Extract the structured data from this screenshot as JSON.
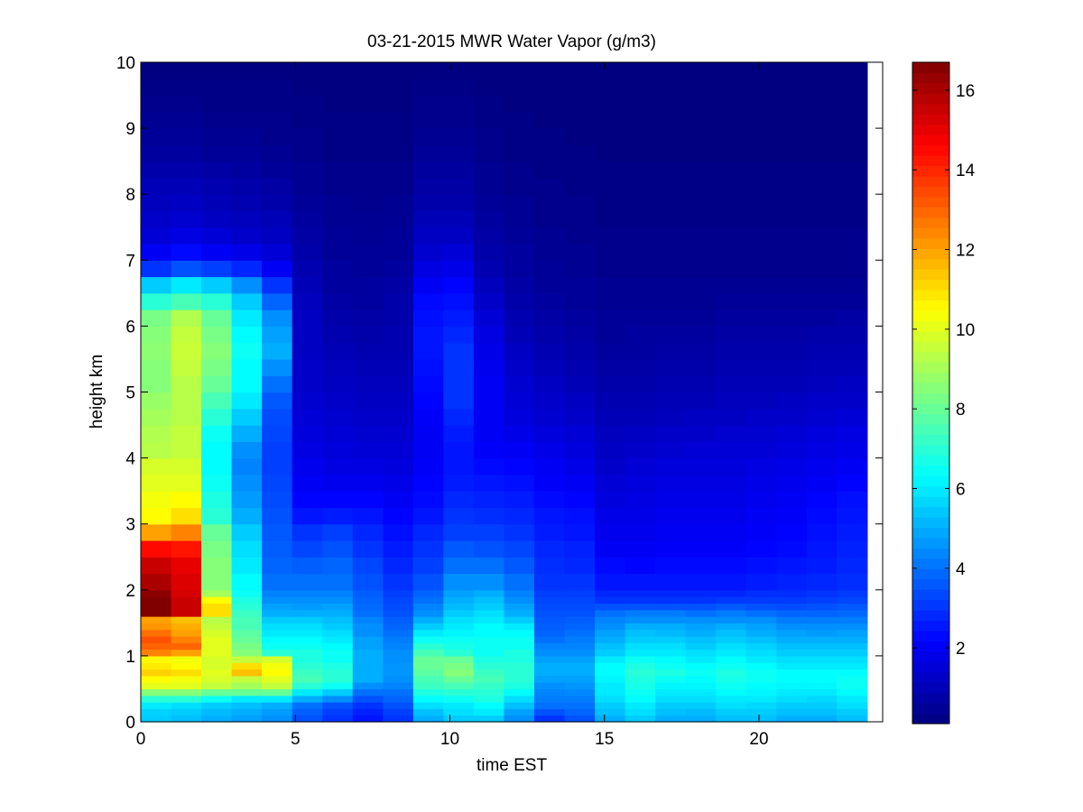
{
  "chart_data": {
    "type": "heatmap",
    "title": "03-21-2015 MWR Water Vapor (g/m3)",
    "xlabel": "time EST",
    "ylabel": "height km",
    "xlim": [
      0,
      24
    ],
    "ylim": [
      0,
      10
    ],
    "x_ticks": [
      0,
      5,
      10,
      15,
      20
    ],
    "y_ticks": [
      0,
      1,
      2,
      3,
      4,
      5,
      6,
      7,
      8,
      9,
      10
    ],
    "colorbar": {
      "colormap": "jet",
      "range": [
        0.1,
        16.7
      ],
      "ticks": [
        2,
        4,
        6,
        8,
        10,
        12,
        14,
        16
      ]
    },
    "time_bins": {
      "start": 0,
      "end": 23.5,
      "count": 24
    },
    "height_levels_km": [
      0,
      0.1,
      0.2,
      0.3,
      0.4,
      0.5,
      0.6,
      0.7,
      0.8,
      0.9,
      1.0,
      1.1,
      1.2,
      1.3,
      1.4,
      1.5,
      1.6,
      1.7,
      1.8,
      1.9,
      2.0,
      2.25,
      2.5,
      2.75,
      3.0,
      3.25,
      3.5,
      3.75,
      4.0,
      4.25,
      4.5,
      4.75,
      5.0,
      5.25,
      5.5,
      5.75,
      6.0,
      6.25,
      6.5,
      6.75,
      7.0,
      7.25,
      7.5,
      7.75,
      8.0,
      8.25,
      8.5,
      8.75,
      9.0,
      9.25,
      9.5,
      9.75
    ],
    "values_by_time": [
      [
        5.5,
        5.6,
        6.0,
        7.0,
        8.5,
        10.0,
        10.5,
        11.2,
        10.8,
        10.5,
        12.5,
        13.0,
        13.3,
        12.8,
        12.2,
        12.0,
        16.7,
        16.7,
        16.7,
        16.5,
        16.0,
        15.5,
        14.5,
        12.0,
        10.5,
        10.3,
        10.0,
        9.8,
        9.3,
        9.2,
        9.0,
        8.8,
        8.5,
        8.5,
        8.6,
        8.5,
        8.3,
        7.0,
        5.5,
        3.0,
        2.0,
        1.5,
        1.3,
        1.1,
        1.0,
        0.8,
        0.6,
        0.5,
        0.4,
        0.3,
        0.2,
        0.1
      ],
      [
        5.3,
        5.5,
        5.8,
        7.0,
        8.5,
        10.0,
        10.3,
        11.0,
        10.5,
        10.3,
        12.0,
        13.0,
        12.5,
        12.0,
        11.8,
        11.5,
        15.5,
        15.5,
        15.5,
        15.3,
        15.2,
        15.0,
        14.3,
        12.5,
        11.0,
        10.5,
        10.0,
        9.8,
        9.5,
        9.5,
        9.3,
        9.3,
        9.3,
        9.5,
        9.6,
        9.5,
        9.2,
        7.5,
        6.0,
        3.5,
        2.3,
        1.7,
        1.4,
        1.2,
        1.0,
        0.8,
        0.6,
        0.5,
        0.4,
        0.3,
        0.2,
        0.1
      ],
      [
        5.0,
        5.2,
        5.5,
        6.5,
        8.0,
        9.5,
        9.8,
        10.0,
        9.8,
        9.8,
        10.0,
        10.0,
        10.0,
        9.8,
        9.5,
        9.3,
        11.0,
        11.0,
        10.5,
        9.0,
        8.5,
        8.5,
        8.3,
        8.0,
        7.0,
        6.8,
        6.5,
        6.3,
        6.3,
        6.5,
        7.0,
        7.5,
        8.0,
        8.3,
        8.5,
        8.3,
        8.0,
        7.0,
        5.5,
        3.2,
        2.0,
        1.5,
        1.2,
        1.0,
        0.9,
        0.7,
        0.5,
        0.4,
        0.3,
        0.2,
        0.2,
        0.1
      ],
      [
        4.8,
        5.0,
        5.3,
        6.0,
        8.0,
        9.0,
        9.5,
        11.5,
        11.0,
        9.5,
        8.5,
        8.3,
        8.0,
        7.8,
        7.5,
        7.5,
        7.3,
        7.0,
        6.8,
        6.5,
        6.3,
        6.0,
        5.8,
        5.5,
        5.0,
        4.7,
        4.5,
        4.3,
        4.5,
        5.0,
        5.5,
        6.0,
        6.3,
        6.3,
        6.5,
        6.3,
        6.0,
        5.5,
        4.5,
        2.8,
        1.8,
        1.3,
        1.1,
        0.9,
        0.8,
        0.6,
        0.5,
        0.4,
        0.3,
        0.2,
        0.2,
        0.1
      ],
      [
        4.5,
        4.7,
        5.0,
        6.0,
        8.0,
        9.5,
        10.0,
        10.5,
        10.3,
        9.8,
        7.0,
        6.5,
        6.3,
        6.0,
        5.8,
        5.5,
        5.0,
        4.8,
        4.5,
        4.3,
        4.0,
        3.8,
        3.7,
        3.6,
        3.5,
        3.4,
        3.3,
        3.2,
        3.2,
        3.3,
        3.4,
        3.6,
        4.0,
        4.5,
        5.0,
        4.8,
        4.5,
        3.8,
        3.0,
        2.0,
        1.5,
        1.2,
        1.0,
        0.8,
        0.7,
        0.5,
        0.4,
        0.3,
        0.3,
        0.2,
        0.2,
        0.1
      ],
      [
        3.5,
        3.7,
        4.0,
        5.0,
        6.0,
        7.0,
        7.5,
        7.3,
        7.0,
        6.8,
        6.8,
        6.5,
        6.3,
        6.0,
        5.8,
        5.5,
        5.0,
        4.7,
        4.5,
        4.3,
        4.0,
        3.7,
        3.3,
        3.0,
        2.5,
        2.2,
        2.0,
        1.9,
        1.7,
        1.6,
        1.5,
        1.4,
        1.3,
        1.3,
        1.2,
        1.2,
        1.2,
        1.1,
        1.0,
        0.9,
        0.8,
        0.7,
        0.6,
        0.5,
        0.4,
        0.4,
        0.3,
        0.3,
        0.2,
        0.2,
        0.1,
        0.1
      ],
      [
        3.0,
        3.2,
        3.5,
        4.5,
        5.5,
        6.5,
        7.0,
        7.0,
        6.8,
        6.5,
        6.5,
        6.3,
        6.0,
        5.8,
        5.5,
        5.3,
        5.0,
        4.8,
        4.5,
        4.3,
        4.0,
        3.8,
        3.5,
        3.2,
        2.6,
        2.2,
        1.9,
        1.7,
        1.6,
        1.5,
        1.4,
        1.3,
        1.2,
        1.1,
        1.0,
        0.9,
        0.8,
        0.7,
        0.6,
        0.6,
        0.5,
        0.5,
        0.4,
        0.4,
        0.3,
        0.3,
        0.2,
        0.2,
        0.2,
        0.1,
        0.1,
        0.1
      ],
      [
        2.5,
        2.7,
        3.0,
        3.5,
        4.0,
        4.5,
        5.0,
        5.0,
        5.0,
        5.0,
        5.0,
        4.8,
        4.8,
        4.5,
        4.5,
        4.3,
        4.0,
        3.9,
        3.8,
        3.7,
        3.5,
        3.3,
        3.0,
        2.8,
        2.5,
        2.2,
        1.9,
        1.7,
        1.5,
        1.4,
        1.3,
        1.2,
        1.1,
        1.0,
        0.9,
        0.8,
        0.7,
        0.6,
        0.6,
        0.5,
        0.5,
        0.4,
        0.4,
        0.3,
        0.3,
        0.3,
        0.2,
        0.2,
        0.2,
        0.1,
        0.1,
        0.1
      ],
      [
        3.0,
        3.2,
        3.5,
        3.8,
        4.0,
        4.3,
        4.5,
        4.6,
        4.6,
        4.5,
        4.5,
        4.3,
        4.2,
        4.0,
        3.8,
        3.7,
        3.5,
        3.4,
        3.3,
        3.2,
        3.0,
        2.8,
        2.6,
        2.4,
        2.2,
        2.0,
        1.8,
        1.6,
        1.5,
        1.4,
        1.3,
        1.2,
        1.1,
        1.0,
        0.9,
        0.9,
        0.8,
        0.8,
        0.7,
        0.6,
        0.5,
        0.5,
        0.4,
        0.4,
        0.3,
        0.3,
        0.2,
        0.2,
        0.2,
        0.1,
        0.1,
        0.1
      ],
      [
        5.0,
        5.3,
        5.8,
        6.3,
        6.8,
        7.3,
        7.5,
        7.8,
        8.0,
        8.0,
        7.5,
        7.0,
        6.5,
        6.0,
        5.5,
        5.0,
        4.5,
        4.3,
        4.0,
        3.8,
        3.5,
        3.2,
        3.0,
        2.8,
        2.5,
        2.3,
        2.2,
        2.1,
        2.0,
        2.0,
        2.1,
        2.2,
        2.3,
        2.4,
        2.5,
        2.5,
        2.4,
        2.3,
        2.0,
        1.7,
        1.4,
        1.2,
        1.0,
        0.8,
        0.7,
        0.6,
        0.5,
        0.4,
        0.3,
        0.3,
        0.2,
        0.1
      ],
      [
        5.5,
        5.8,
        6.0,
        6.5,
        7.0,
        7.5,
        8.0,
        8.5,
        8.3,
        8.0,
        7.0,
        6.7,
        6.5,
        6.2,
        6.0,
        5.8,
        5.5,
        5.2,
        5.0,
        4.8,
        4.5,
        4.0,
        3.6,
        3.2,
        3.0,
        2.8,
        2.6,
        2.5,
        2.5,
        2.6,
        2.8,
        3.0,
        3.0,
        3.0,
        3.0,
        2.8,
        2.6,
        2.4,
        2.2,
        1.8,
        1.5,
        1.2,
        1.0,
        0.8,
        0.7,
        0.6,
        0.5,
        0.4,
        0.3,
        0.3,
        0.2,
        0.1
      ],
      [
        5.5,
        6.0,
        6.3,
        6.8,
        7.0,
        7.2,
        7.5,
        7.3,
        7.0,
        6.8,
        6.5,
        6.5,
        6.5,
        6.3,
        6.3,
        6.0,
        5.8,
        5.5,
        5.3,
        5.0,
        4.5,
        4.0,
        3.5,
        3.2,
        2.9,
        2.7,
        2.5,
        2.3,
        2.1,
        2.0,
        2.0,
        2.0,
        2.0,
        1.9,
        1.8,
        1.7,
        1.5,
        1.3,
        1.1,
        0.9,
        0.8,
        0.7,
        0.6,
        0.5,
        0.4,
        0.4,
        0.3,
        0.3,
        0.2,
        0.2,
        0.1,
        0.1
      ],
      [
        4.5,
        4.8,
        5.3,
        5.8,
        6.3,
        6.8,
        7.0,
        7.0,
        7.0,
        6.8,
        6.8,
        6.5,
        6.5,
        6.3,
        6.0,
        5.5,
        5.0,
        4.8,
        4.5,
        4.3,
        4.0,
        3.6,
        3.3,
        3.0,
        2.8,
        2.6,
        2.4,
        2.2,
        2.0,
        1.8,
        1.6,
        1.5,
        1.4,
        1.3,
        1.2,
        1.0,
        0.9,
        0.8,
        0.7,
        0.6,
        0.6,
        0.5,
        0.4,
        0.4,
        0.3,
        0.3,
        0.2,
        0.2,
        0.2,
        0.1,
        0.1,
        0.1
      ],
      [
        3.0,
        3.5,
        4.0,
        4.2,
        4.3,
        4.5,
        4.8,
        5.0,
        5.0,
        4.8,
        4.5,
        4.3,
        4.0,
        3.8,
        3.7,
        3.6,
        3.5,
        3.4,
        3.3,
        3.2,
        3.0,
        2.9,
        2.8,
        2.6,
        2.5,
        2.3,
        2.1,
        2.0,
        1.8,
        1.6,
        1.4,
        1.3,
        1.2,
        1.0,
        0.9,
        0.8,
        0.7,
        0.6,
        0.5,
        0.5,
        0.4,
        0.4,
        0.3,
        0.3,
        0.3,
        0.2,
        0.2,
        0.2,
        0.1,
        0.1,
        0.1,
        0.1
      ],
      [
        3.5,
        3.8,
        4.0,
        4.2,
        4.4,
        4.6,
        4.8,
        5.0,
        5.0,
        4.8,
        4.5,
        4.3,
        4.2,
        4.0,
        3.8,
        3.7,
        3.5,
        3.4,
        3.3,
        3.2,
        3.0,
        2.8,
        2.7,
        2.5,
        2.4,
        2.2,
        2.0,
        1.8,
        1.6,
        1.5,
        1.3,
        1.2,
        1.0,
        0.9,
        0.8,
        0.7,
        0.6,
        0.5,
        0.5,
        0.4,
        0.4,
        0.3,
        0.3,
        0.3,
        0.2,
        0.2,
        0.2,
        0.1,
        0.1,
        0.1,
        0.1,
        0.1
      ],
      [
        5.0,
        5.3,
        5.5,
        5.8,
        6.0,
        6.0,
        6.2,
        6.3,
        6.3,
        6.0,
        5.5,
        5.3,
        5.0,
        4.8,
        4.5,
        4.3,
        4.0,
        3.5,
        3.0,
        2.8,
        2.5,
        2.3,
        2.0,
        1.9,
        1.8,
        1.6,
        1.5,
        1.3,
        1.2,
        1.1,
        1.0,
        0.9,
        0.8,
        0.7,
        0.6,
        0.5,
        0.5,
        0.4,
        0.4,
        0.3,
        0.3,
        0.3,
        0.2,
        0.2,
        0.2,
        0.2,
        0.1,
        0.1,
        0.1,
        0.1,
        0.1,
        0.1
      ],
      [
        5.5,
        5.8,
        6.0,
        6.3,
        6.5,
        6.7,
        6.8,
        7.0,
        6.8,
        6.5,
        6.0,
        5.8,
        5.5,
        5.3,
        5.0,
        4.5,
        4.2,
        3.5,
        3.0,
        2.8,
        2.5,
        2.2,
        2.0,
        1.9,
        1.8,
        1.7,
        1.6,
        1.5,
        1.3,
        1.2,
        1.0,
        0.9,
        0.8,
        0.7,
        0.6,
        0.6,
        0.5,
        0.4,
        0.4,
        0.3,
        0.3,
        0.3,
        0.2,
        0.2,
        0.2,
        0.2,
        0.1,
        0.1,
        0.1,
        0.1,
        0.1,
        0.1
      ],
      [
        5.0,
        5.3,
        5.5,
        5.8,
        6.0,
        6.2,
        6.5,
        6.8,
        6.5,
        6.3,
        6.0,
        5.8,
        5.5,
        5.2,
        5.0,
        4.5,
        4.2,
        3.5,
        3.0,
        2.8,
        2.5,
        2.3,
        2.1,
        2.0,
        1.9,
        1.8,
        1.7,
        1.6,
        1.4,
        1.3,
        1.1,
        1.0,
        0.9,
        0.8,
        0.7,
        0.6,
        0.5,
        0.4,
        0.4,
        0.3,
        0.3,
        0.3,
        0.2,
        0.2,
        0.2,
        0.2,
        0.1,
        0.1,
        0.1,
        0.1,
        0.1,
        0.1
      ],
      [
        5.0,
        5.2,
        5.5,
        5.8,
        6.0,
        6.2,
        6.3,
        6.5,
        6.3,
        6.0,
        5.8,
        5.5,
        5.3,
        5.0,
        4.8,
        4.5,
        4.0,
        3.5,
        3.0,
        2.8,
        2.5,
        2.3,
        2.1,
        2.0,
        1.9,
        1.8,
        1.7,
        1.6,
        1.5,
        1.3,
        1.2,
        1.0,
        0.9,
        0.8,
        0.7,
        0.6,
        0.5,
        0.4,
        0.4,
        0.3,
        0.3,
        0.3,
        0.2,
        0.2,
        0.2,
        0.2,
        0.1,
        0.1,
        0.1,
        0.1,
        0.1,
        0.1
      ],
      [
        5.3,
        5.5,
        5.8,
        6.0,
        6.3,
        6.5,
        6.7,
        6.8,
        6.5,
        6.3,
        6.0,
        5.8,
        5.5,
        5.3,
        5.0,
        4.5,
        4.2,
        3.6,
        3.1,
        2.8,
        2.5,
        2.3,
        2.1,
        2.0,
        1.9,
        1.8,
        1.7,
        1.6,
        1.5,
        1.4,
        1.2,
        1.1,
        1.0,
        0.9,
        0.8,
        0.7,
        0.6,
        0.5,
        0.4,
        0.3,
        0.3,
        0.3,
        0.2,
        0.2,
        0.2,
        0.2,
        0.1,
        0.1,
        0.1,
        0.1,
        0.1,
        0.1
      ],
      [
        5.3,
        5.5,
        5.7,
        6.0,
        6.2,
        6.3,
        6.5,
        6.5,
        6.3,
        6.0,
        5.8,
        5.6,
        5.3,
        5.0,
        4.8,
        4.5,
        4.0,
        3.5,
        3.1,
        2.9,
        2.6,
        2.4,
        2.2,
        2.1,
        2.0,
        1.9,
        1.8,
        1.7,
        1.5,
        1.4,
        1.3,
        1.1,
        1.0,
        0.9,
        0.8,
        0.7,
        0.6,
        0.5,
        0.4,
        0.3,
        0.3,
        0.3,
        0.2,
        0.2,
        0.2,
        0.2,
        0.1,
        0.1,
        0.1,
        0.1,
        0.1,
        0.1
      ],
      [
        5.0,
        5.3,
        5.5,
        5.8,
        6.0,
        6.2,
        6.3,
        6.3,
        6.0,
        5.8,
        5.5,
        5.3,
        5.0,
        4.8,
        4.5,
        4.2,
        3.8,
        3.4,
        3.1,
        2.9,
        2.7,
        2.5,
        2.3,
        2.2,
        2.1,
        2.0,
        1.9,
        1.8,
        1.6,
        1.5,
        1.3,
        1.2,
        1.0,
        0.9,
        0.8,
        0.7,
        0.6,
        0.5,
        0.4,
        0.3,
        0.3,
        0.3,
        0.2,
        0.2,
        0.2,
        0.2,
        0.1,
        0.1,
        0.1,
        0.1,
        0.1,
        0.1
      ],
      [
        5.0,
        5.3,
        5.5,
        5.7,
        6.0,
        6.2,
        6.3,
        6.3,
        6.0,
        5.8,
        5.5,
        5.3,
        5.0,
        4.7,
        4.5,
        4.2,
        3.8,
        3.5,
        3.2,
        3.0,
        2.8,
        2.6,
        2.5,
        2.4,
        2.3,
        2.2,
        2.0,
        1.9,
        1.7,
        1.6,
        1.4,
        1.3,
        1.1,
        1.0,
        0.9,
        0.8,
        0.6,
        0.5,
        0.4,
        0.3,
        0.3,
        0.3,
        0.2,
        0.2,
        0.2,
        0.2,
        0.1,
        0.1,
        0.1,
        0.1,
        0.1,
        0.1
      ],
      [
        5.3,
        5.5,
        5.8,
        6.0,
        6.3,
        6.5,
        6.5,
        6.3,
        6.0,
        5.8,
        5.5,
        5.3,
        5.0,
        4.8,
        4.5,
        4.2,
        3.9,
        3.6,
        3.3,
        3.1,
        2.9,
        2.8,
        2.7,
        2.6,
        2.5,
        2.4,
        2.2,
        2.0,
        1.8,
        1.7,
        1.5,
        1.3,
        1.2,
        1.0,
        0.9,
        0.8,
        0.7,
        0.5,
        0.4,
        0.3,
        0.3,
        0.3,
        0.2,
        0.2,
        0.2,
        0.2,
        0.1,
        0.1,
        0.1,
        0.1,
        0.1,
        0.1
      ]
    ]
  }
}
